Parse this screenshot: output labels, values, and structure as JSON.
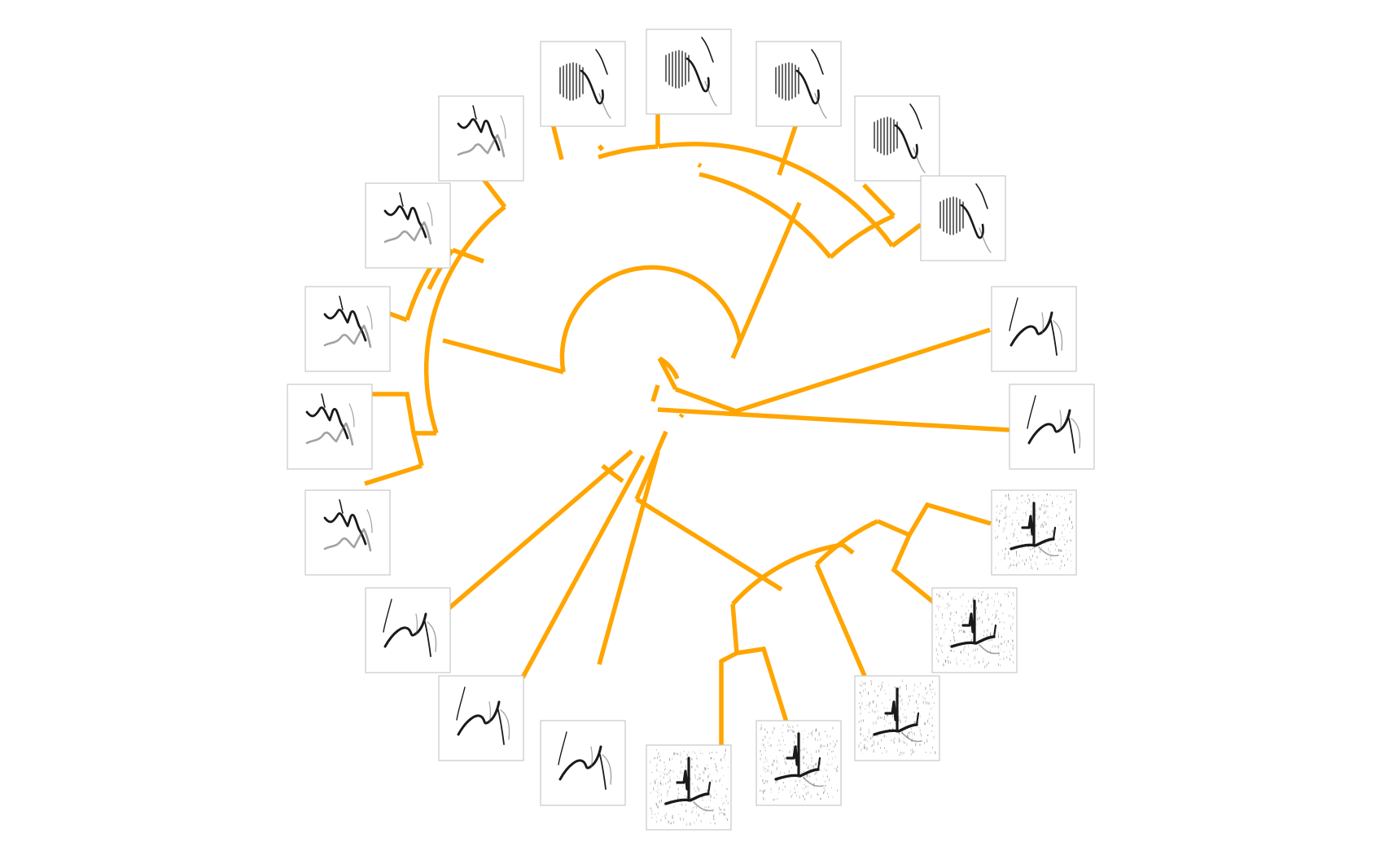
{
  "diagram": {
    "type": "circular-dendrogram",
    "branch_color": "#FFA500",
    "leaf_count": 20,
    "leaves": [
      {
        "id": 1,
        "motif": "trill-downsweep",
        "shading": "clean"
      },
      {
        "id": 2,
        "motif": "trill-downsweep",
        "shading": "clean"
      },
      {
        "id": 3,
        "motif": "trill-downsweep",
        "shading": "clean"
      },
      {
        "id": 4,
        "motif": "trill-downsweep",
        "shading": "clean"
      },
      {
        "id": 5,
        "motif": "trill-downsweep",
        "shading": "clean"
      },
      {
        "id": 6,
        "motif": "rising-hook",
        "shading": "clean"
      },
      {
        "id": 7,
        "motif": "rising-hook",
        "shading": "clean"
      },
      {
        "id": 8,
        "motif": "stepped-call",
        "shading": "noisy"
      },
      {
        "id": 9,
        "motif": "stepped-call",
        "shading": "noisy"
      },
      {
        "id": 10,
        "motif": "stepped-call",
        "shading": "noisy"
      },
      {
        "id": 11,
        "motif": "stepped-call",
        "shading": "noisy"
      },
      {
        "id": 12,
        "motif": "stepped-call",
        "shading": "noisy"
      },
      {
        "id": 13,
        "motif": "rising-hook",
        "shading": "clean"
      },
      {
        "id": 14,
        "motif": "rising-hook",
        "shading": "clean"
      },
      {
        "id": 15,
        "motif": "rising-hook",
        "shading": "clean"
      },
      {
        "id": 16,
        "motif": "zigzag-harmonic",
        "shading": "clean"
      },
      {
        "id": 17,
        "motif": "zigzag-harmonic",
        "shading": "clean"
      },
      {
        "id": 18,
        "motif": "zigzag-harmonic",
        "shading": "clean"
      },
      {
        "id": 19,
        "motif": "zigzag-harmonic",
        "shading": "clean"
      },
      {
        "id": 20,
        "motif": "zigzag-harmonic",
        "shading": "clean"
      }
    ]
  }
}
